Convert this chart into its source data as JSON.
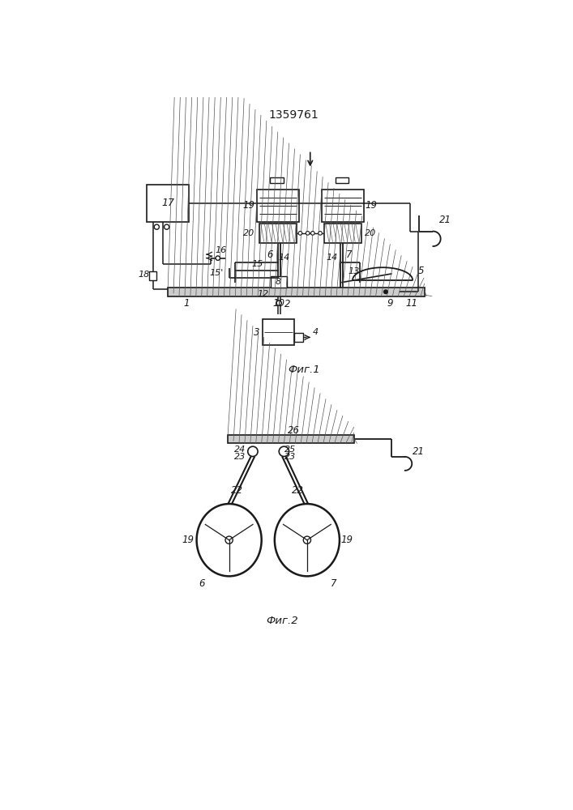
{
  "title": "1359761",
  "fig1_caption": "Фиг.1",
  "fig2_caption": "Фиг.2",
  "line_color": "#1a1a1a",
  "lw": 1.2
}
